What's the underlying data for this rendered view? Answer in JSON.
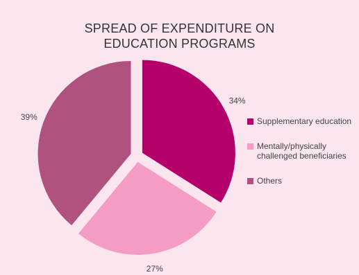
{
  "colors": {
    "background": "#fbe6ef",
    "slices": [
      "#b3006b",
      "#f49cc4",
      "#b0527f"
    ]
  },
  "chart_data": {
    "type": "pie",
    "title_lines": [
      "SPREAD OF EXPENDITURE ON",
      "EDUCATION PROGRAMS"
    ],
    "slices": [
      {
        "label": "Supplementary education",
        "value": 34,
        "value_label": "34%",
        "color": "#b3006b"
      },
      {
        "label": "Mentally/physically challenged beneficiaries",
        "value": 27,
        "value_label": "27%",
        "color": "#f49cc4"
      },
      {
        "label": "Others",
        "value": 39,
        "value_label": "39%",
        "color": "#b0527f"
      }
    ],
    "legend": {
      "position": "right",
      "items": [
        {
          "lines": [
            "Supplementary education"
          ],
          "color": "#b3006b"
        },
        {
          "lines": [
            "Mentally/physically",
            "challenged beneficiaries"
          ],
          "color": "#f49cc4"
        },
        {
          "lines": [
            "Others"
          ],
          "color": "#b0527f"
        }
      ]
    },
    "exploded": true,
    "start_angle": "12 o'clock, clockwise"
  }
}
